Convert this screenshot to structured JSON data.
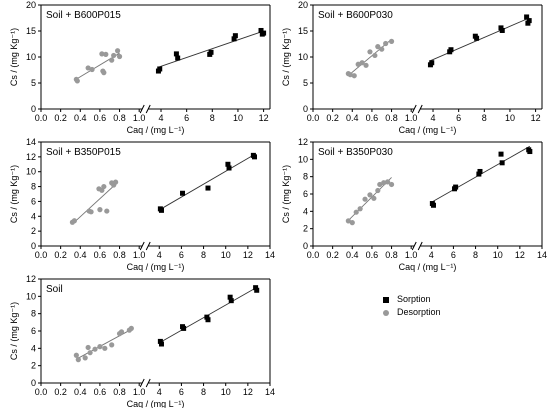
{
  "legend": {
    "sorption": "Sorption",
    "desorption": "Desorption"
  },
  "colors": {
    "sorption": "#000000",
    "desorption": "#999999",
    "fit": "#333333"
  },
  "chart_data": [
    {
      "type": "scatter",
      "title": "Soil + B600P015",
      "xlabel": "Caq / (mg L⁻¹)",
      "ylabel": "Cs / (mg Kg⁻¹)",
      "x_break": true,
      "x_left": {
        "range": [
          0.0,
          1.0
        ],
        "ticks": [
          "0.0",
          "0.2",
          "0.4",
          "0.6",
          "0.8",
          "1.0"
        ]
      },
      "x_right": {
        "range": [
          3,
          12.5
        ],
        "ticks": [
          "4",
          "6",
          "8",
          "10",
          "12"
        ]
      },
      "yticks": [
        "0",
        "5",
        "10",
        "15",
        "20"
      ],
      "ylim": [
        0,
        20
      ],
      "series": [
        {
          "name": "Sorption",
          "marker": "square",
          "x": [
            3.8,
            3.9,
            5.2,
            5.3,
            7.8,
            7.9,
            9.7,
            9.8,
            11.8,
            11.9,
            12.0
          ],
          "y": [
            7.3,
            7.7,
            10.6,
            9.8,
            10.5,
            10.9,
            13.5,
            14.1,
            15.1,
            14.4,
            14.6
          ]
        },
        {
          "name": "Desorption",
          "marker": "circle",
          "x": [
            0.36,
            0.37,
            0.48,
            0.52,
            0.62,
            0.63,
            0.64,
            0.66,
            0.72,
            0.74,
            0.78,
            0.8
          ],
          "y": [
            5.7,
            5.4,
            7.9,
            7.6,
            10.6,
            7.3,
            7.0,
            10.5,
            9.4,
            10.3,
            11.2,
            10.1
          ]
        }
      ]
    },
    {
      "type": "scatter",
      "title": "Soil + B600P030",
      "xlabel": "Caq / (mg L⁻¹)",
      "ylabel": "Cs / (mg Kg⁻¹)",
      "x_break": true,
      "x_left": {
        "range": [
          0.0,
          1.0
        ],
        "ticks": [
          "0.0",
          "0.2",
          "0.4",
          "0.6",
          "0.8",
          "1.0"
        ]
      },
      "x_right": {
        "range": [
          3,
          12.5
        ],
        "ticks": [
          "4",
          "6",
          "8",
          "10",
          "12"
        ]
      },
      "yticks": [
        "0",
        "5",
        "10",
        "15",
        "20"
      ],
      "ylim": [
        0,
        20
      ],
      "series": [
        {
          "name": "Sorption",
          "marker": "square",
          "x": [
            3.8,
            3.9,
            5.3,
            5.4,
            7.3,
            7.4,
            9.3,
            9.4,
            11.3,
            11.4,
            11.5
          ],
          "y": [
            8.5,
            8.9,
            11.0,
            11.4,
            14.0,
            13.6,
            15.6,
            15.1,
            17.7,
            16.5,
            17.0
          ]
        },
        {
          "name": "Desorption",
          "marker": "circle",
          "x": [
            0.36,
            0.38,
            0.42,
            0.46,
            0.5,
            0.54,
            0.58,
            0.63,
            0.66,
            0.7,
            0.74,
            0.8
          ],
          "y": [
            6.8,
            6.6,
            6.4,
            8.6,
            8.9,
            8.4,
            11.0,
            10.3,
            12.0,
            11.5,
            12.6,
            13.0
          ]
        }
      ]
    },
    {
      "type": "scatter",
      "title": "Soil + B350P015",
      "xlabel": "Caq / (mg L⁻¹)",
      "ylabel": "Cs / (mg Kg⁻¹)",
      "x_break": true,
      "x_left": {
        "range": [
          0.0,
          1.0
        ],
        "ticks": [
          "0.0",
          "0.2",
          "0.4",
          "0.6",
          "0.8",
          "1.0"
        ]
      },
      "x_right": {
        "range": [
          3,
          14
        ],
        "ticks": [
          "4",
          "6",
          "8",
          "10",
          "12",
          "14"
        ]
      },
      "yticks": [
        "0",
        "2",
        "4",
        "6",
        "8",
        "10",
        "12",
        "14"
      ],
      "ylim": [
        0,
        14
      ],
      "series": [
        {
          "name": "Sorption",
          "marker": "square",
          "x": [
            4.1,
            4.2,
            6.1,
            8.4,
            10.2,
            10.3,
            12.5,
            12.6
          ],
          "y": [
            5.0,
            4.8,
            7.1,
            7.8,
            11.0,
            10.5,
            12.2,
            12.0
          ]
        },
        {
          "name": "Desorption",
          "marker": "circle",
          "x": [
            0.32,
            0.34,
            0.49,
            0.51,
            0.59,
            0.6,
            0.62,
            0.64,
            0.67,
            0.72,
            0.74,
            0.76
          ],
          "y": [
            3.2,
            3.4,
            4.7,
            4.6,
            7.7,
            4.9,
            7.5,
            8.0,
            4.7,
            8.5,
            8.2,
            8.6
          ]
        }
      ]
    },
    {
      "type": "scatter",
      "title": "Soil + B350P030",
      "xlabel": "Caq / (mg L⁻¹)",
      "ylabel": "Cs / (mg Kg⁻¹)",
      "x_break": true,
      "x_left": {
        "range": [
          0.0,
          1.0
        ],
        "ticks": [
          "0.0",
          "0.2",
          "0.4",
          "0.6",
          "0.8",
          "1.0"
        ]
      },
      "x_right": {
        "range": [
          3,
          14
        ],
        "ticks": [
          "4",
          "6",
          "8",
          "10",
          "12",
          "14"
        ]
      },
      "yticks": [
        "0",
        "2",
        "4",
        "6",
        "8",
        "10",
        "12"
      ],
      "ylim": [
        0,
        12
      ],
      "series": [
        {
          "name": "Sorption",
          "marker": "square",
          "x": [
            4.1,
            4.2,
            6.1,
            6.2,
            8.3,
            8.4,
            10.3,
            10.4,
            12.8,
            12.9
          ],
          "y": [
            4.9,
            4.7,
            6.6,
            6.8,
            8.3,
            8.6,
            10.6,
            9.6,
            11.1,
            10.9
          ]
        },
        {
          "name": "Desorption",
          "marker": "circle",
          "x": [
            0.36,
            0.4,
            0.44,
            0.48,
            0.53,
            0.58,
            0.62,
            0.66,
            0.68,
            0.72,
            0.76,
            0.8
          ],
          "y": [
            2.9,
            2.7,
            3.9,
            4.3,
            5.4,
            5.9,
            5.5,
            6.4,
            7.1,
            7.3,
            7.4,
            7.1
          ]
        }
      ]
    },
    {
      "type": "scatter",
      "title": "Soil",
      "xlabel": "Caq / (mg L⁻¹)",
      "ylabel": "Cs / (mg Kg⁻¹)",
      "x_break": true,
      "x_left": {
        "range": [
          0.0,
          1.0
        ],
        "ticks": [
          "0.0",
          "0.2",
          "0.4",
          "0.6",
          "0.8",
          "1.0"
        ]
      },
      "x_right": {
        "range": [
          3,
          14
        ],
        "ticks": [
          "4",
          "6",
          "8",
          "10",
          "12",
          "14"
        ]
      },
      "yticks": [
        "0",
        "2",
        "4",
        "6",
        "8",
        "10",
        "12"
      ],
      "ylim": [
        0,
        12
      ],
      "series": [
        {
          "name": "Sorption",
          "marker": "square",
          "x": [
            4.1,
            4.2,
            6.1,
            6.2,
            8.3,
            8.4,
            10.4,
            10.5,
            12.7,
            12.8
          ],
          "y": [
            4.8,
            4.5,
            6.5,
            6.3,
            7.6,
            7.3,
            9.9,
            9.5,
            11.0,
            10.7
          ]
        },
        {
          "name": "Desorption",
          "marker": "circle",
          "x": [
            0.36,
            0.38,
            0.45,
            0.48,
            0.5,
            0.55,
            0.6,
            0.65,
            0.72,
            0.8,
            0.82,
            0.9,
            0.92
          ],
          "y": [
            3.2,
            2.7,
            2.9,
            4.1,
            3.5,
            3.9,
            4.2,
            4.0,
            4.4,
            5.7,
            5.9,
            6.1,
            6.3
          ]
        }
      ]
    }
  ]
}
